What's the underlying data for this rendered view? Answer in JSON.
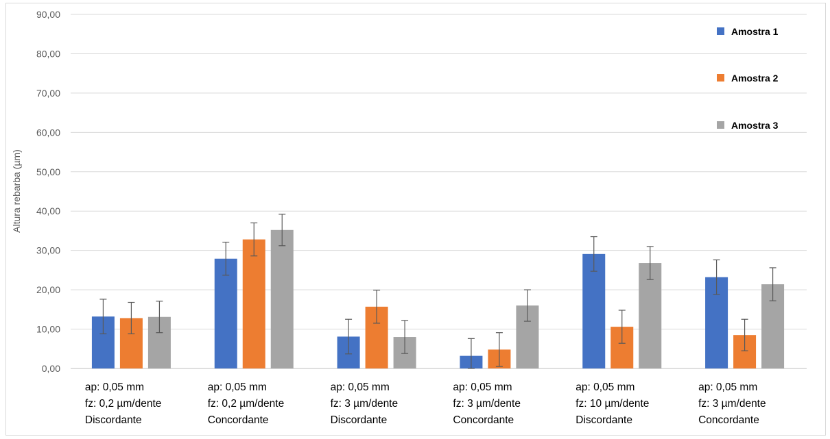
{
  "chart_data": {
    "type": "bar",
    "title": "",
    "xlabel": "",
    "ylabel": "Altura rebarba (µm)",
    "ylim": [
      0,
      90
    ],
    "yticks": [
      "0,00",
      "10,00",
      "20,00",
      "30,00",
      "40,00",
      "50,00",
      "60,00",
      "70,00",
      "80,00",
      "90,00"
    ],
    "grid": true,
    "legend_position": "top-right",
    "categories": [
      [
        "ap: 0,05 mm",
        "fz: 0,2 µm/dente",
        "Discordante"
      ],
      [
        "ap: 0,05 mm",
        "fz: 0,2 µm/dente",
        "Concordante"
      ],
      [
        "ap: 0,05 mm",
        "fz: 3 µm/dente",
        "Discordante"
      ],
      [
        "ap: 0,05 mm",
        "fz: 3 µm/dente",
        "Concordante"
      ],
      [
        "ap: 0,05 mm",
        "fz: 10 µm/dente",
        "Discordante"
      ],
      [
        "ap: 0,05 mm",
        "fz: 3 µm/dente",
        "Concordante"
      ]
    ],
    "series": [
      {
        "name": "Amostra 1",
        "color": "#4472c4",
        "values": [
          13.2,
          27.9,
          8.1,
          3.2,
          29.1,
          23.2
        ],
        "errors": [
          4.4,
          4.2,
          4.4,
          4.4,
          4.4,
          4.4
        ]
      },
      {
        "name": "Amostra 2",
        "color": "#ed7d31",
        "values": [
          12.8,
          32.8,
          15.7,
          4.8,
          10.6,
          8.5
        ],
        "errors": [
          4.0,
          4.2,
          4.2,
          4.3,
          4.2,
          4.0
        ]
      },
      {
        "name": "Amostra 3",
        "color": "#a5a5a5",
        "values": [
          13.1,
          35.2,
          8.0,
          16.0,
          26.8,
          21.4
        ],
        "errors": [
          4.0,
          4.0,
          4.2,
          4.0,
          4.2,
          4.2
        ]
      }
    ]
  }
}
